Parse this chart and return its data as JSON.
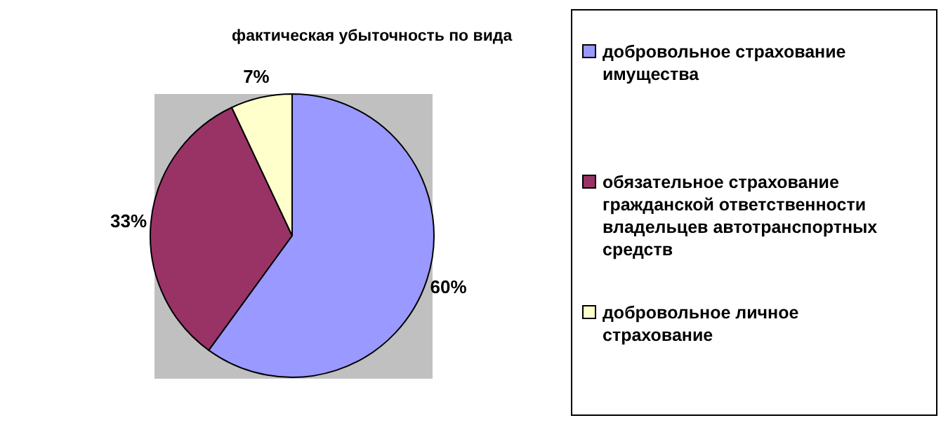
{
  "chart_data": {
    "type": "pie",
    "title": "фактическая убыточность по вида",
    "categories": [
      "добровольное страхование имущества",
      "обязательное страхование гражданской ответственности владельцев автотранспортных средств",
      "добровольное личное страхование"
    ],
    "values": [
      60,
      33,
      7
    ],
    "colors": [
      "#9999ff",
      "#993366",
      "#ffffcc"
    ],
    "value_labels": [
      "60%",
      "33%",
      "7%"
    ],
    "legend": "right"
  }
}
